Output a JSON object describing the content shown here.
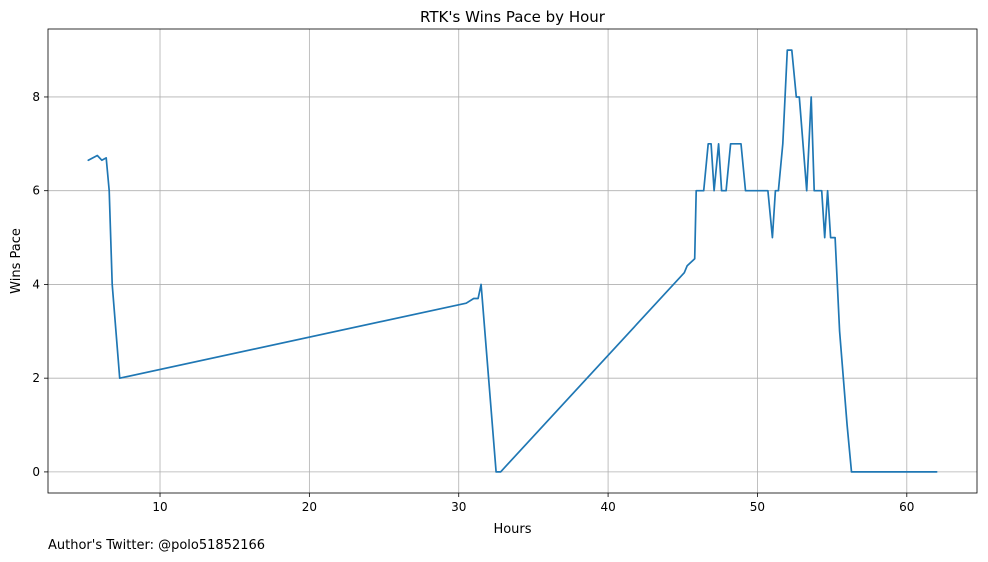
{
  "chart_data": {
    "type": "line",
    "title": "RTK's Wins Pace by Hour",
    "xlabel": "Hours",
    "ylabel": "Wins Pace",
    "xlim": [
      2.5,
      64.7
    ],
    "ylim": [
      -0.45,
      9.45
    ],
    "xticks": [
      10,
      20,
      30,
      40,
      50,
      60
    ],
    "yticks": [
      0,
      2,
      4,
      6,
      8
    ],
    "grid": true,
    "series": [
      {
        "color": "#1f77b4",
        "x": [
          5.2,
          5.8,
          6.1,
          6.4,
          6.6,
          6.8,
          7.3,
          30.5,
          31.0,
          31.3,
          31.5,
          32.5,
          32.8,
          45.1,
          45.3,
          45.8,
          45.9,
          46.4,
          46.7,
          46.9,
          47.1,
          47.4,
          47.6,
          47.9,
          48.2,
          48.5,
          48.9,
          49.2,
          50.0,
          50.7,
          51.0,
          51.2,
          51.4,
          51.7,
          52.0,
          52.3,
          52.6,
          52.8,
          53.3,
          53.6,
          53.8,
          54.3,
          54.5,
          54.7,
          54.9,
          55.2,
          55.5,
          56.0,
          56.3,
          62.0
        ],
        "y": [
          6.65,
          6.75,
          6.65,
          6.7,
          6.0,
          4.0,
          2.0,
          3.6,
          3.7,
          3.7,
          4.0,
          0.0,
          0.0,
          4.25,
          4.4,
          4.55,
          6.0,
          6.0,
          7.0,
          7.0,
          6.0,
          7.0,
          6.0,
          6.0,
          7.0,
          7.0,
          7.0,
          6.0,
          6.0,
          6.0,
          5.0,
          6.0,
          6.0,
          7.0,
          9.0,
          9.0,
          8.0,
          8.0,
          6.0,
          8.0,
          6.0,
          6.0,
          5.0,
          6.0,
          5.0,
          5.0,
          3.0,
          1.0,
          0.0,
          0.0
        ]
      }
    ]
  },
  "footer": {
    "credit": "Author's Twitter: @polo51852166"
  }
}
